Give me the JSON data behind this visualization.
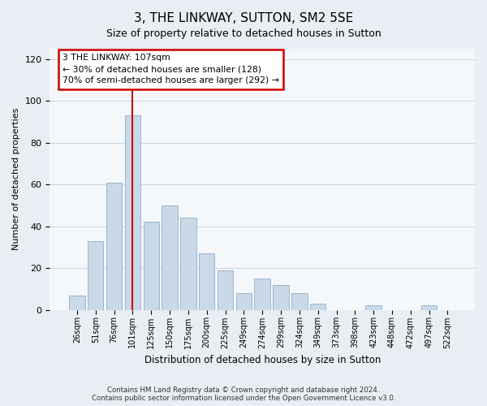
{
  "title": "3, THE LINKWAY, SUTTON, SM2 5SE",
  "subtitle": "Size of property relative to detached houses in Sutton",
  "xlabel": "Distribution of detached houses by size in Sutton",
  "ylabel": "Number of detached properties",
  "bar_labels": [
    "26sqm",
    "51sqm",
    "76sqm",
    "101sqm",
    "125sqm",
    "150sqm",
    "175sqm",
    "200sqm",
    "225sqm",
    "249sqm",
    "274sqm",
    "299sqm",
    "324sqm",
    "349sqm",
    "373sqm",
    "398sqm",
    "423sqm",
    "448sqm",
    "472sqm",
    "497sqm",
    "522sqm"
  ],
  "bar_values": [
    7,
    33,
    61,
    93,
    42,
    50,
    44,
    27,
    19,
    8,
    15,
    12,
    8,
    3,
    0,
    0,
    2,
    0,
    0,
    2,
    0
  ],
  "bar_color": "#c9d9e8",
  "bar_edge_color": "#9ab5cc",
  "vline_x": 3,
  "vline_color": "#cc0000",
  "annotation_line1": "3 THE LINKWAY: 107sqm",
  "annotation_line2": "← 30% of detached houses are smaller (128)",
  "annotation_line3": "70% of semi-detached houses are larger (292) →",
  "box_edge_color": "#cc0000",
  "ylim": [
    0,
    125
  ],
  "yticks": [
    0,
    20,
    40,
    60,
    80,
    100,
    120
  ],
  "footer_line1": "Contains HM Land Registry data © Crown copyright and database right 2024.",
  "footer_line2": "Contains public sector information licensed under the Open Government Licence v3.0.",
  "background_color": "#e8eef4",
  "plot_bg_color": "#f5f8fb",
  "grid_color": "#c8d4e0"
}
